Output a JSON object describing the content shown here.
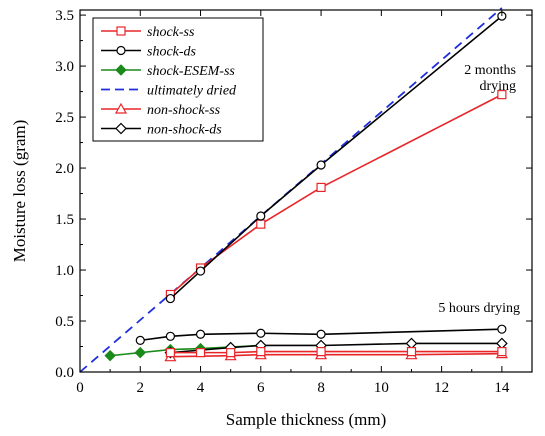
{
  "chart_data": {
    "type": "line",
    "xlabel": "Sample thickness (mm)",
    "ylabel": "Moisture loss (gram)",
    "xlim": [
      0,
      15
    ],
    "ylim": [
      0,
      3.55
    ],
    "xticks": [
      0,
      2,
      4,
      6,
      8,
      10,
      12,
      14
    ],
    "yticks": [
      0.0,
      0.5,
      1.0,
      1.5,
      2.0,
      2.5,
      3.0,
      3.5
    ],
    "ytick_labels": [
      "0.0",
      "0.5",
      "1.0",
      "1.5",
      "2.0",
      "2.5",
      "3.0",
      "3.5"
    ],
    "grid": false,
    "legend_position": "top-left",
    "annotations": [
      {
        "lines": [
          "2 months",
          "drying"
        ],
        "x": 14,
        "y": 3.0
      },
      {
        "lines": [
          "5 hours drying"
        ],
        "x": 11,
        "y": 0.6
      }
    ],
    "series": [
      {
        "name": "shock-ss",
        "color": "#e8262a",
        "marker": "square-open",
        "dash": "solid",
        "x": [
          3,
          4,
          6,
          8,
          14
        ],
        "y": [
          0.76,
          1.02,
          1.45,
          1.81,
          2.72
        ]
      },
      {
        "name": "shock-ds",
        "color": "#000000",
        "marker": "circle-open",
        "dash": "solid",
        "x": [
          3,
          4,
          6,
          8,
          14
        ],
        "y": [
          0.72,
          0.99,
          1.53,
          2.03,
          3.49
        ]
      },
      {
        "name": "shock-ESEM-ss",
        "color": "#1a8a1a",
        "marker": "diamond-filled",
        "dash": "solid",
        "x": [
          1,
          2,
          3,
          4,
          6
        ],
        "y": [
          0.16,
          0.19,
          0.22,
          0.23,
          0.26
        ]
      },
      {
        "name": "ultimately dried",
        "color": "#1f2fdb",
        "marker": "none",
        "dash": "dashed",
        "x": [
          0,
          14
        ],
        "y": [
          0,
          3.57
        ]
      },
      {
        "name": "non-shock-ss",
        "color": "#e8262a",
        "marker": "triangle-open",
        "dash": "solid",
        "x": [
          3,
          5,
          6,
          8,
          11,
          14
        ],
        "y": [
          0.15,
          0.16,
          0.17,
          0.17,
          0.17,
          0.18
        ]
      },
      {
        "name": "non-shock-ds",
        "color": "#000000",
        "marker": "diamond-open",
        "dash": "solid",
        "x": [
          3,
          5,
          6,
          8,
          11,
          14
        ],
        "y": [
          0.19,
          0.24,
          0.26,
          0.26,
          0.28,
          0.28
        ]
      },
      {
        "name": "",
        "color": "#000000",
        "marker": "circle-open",
        "dash": "solid",
        "x": [
          2,
          3,
          4,
          6,
          8,
          14
        ],
        "y": [
          0.31,
          0.35,
          0.37,
          0.38,
          0.37,
          0.42
        ]
      },
      {
        "name": "",
        "color": "#e8262a",
        "marker": "square-open",
        "dash": "solid",
        "x": [
          3,
          4,
          5,
          6,
          8,
          11,
          14
        ],
        "y": [
          0.19,
          0.19,
          0.19,
          0.2,
          0.2,
          0.2,
          0.2
        ]
      }
    ]
  }
}
